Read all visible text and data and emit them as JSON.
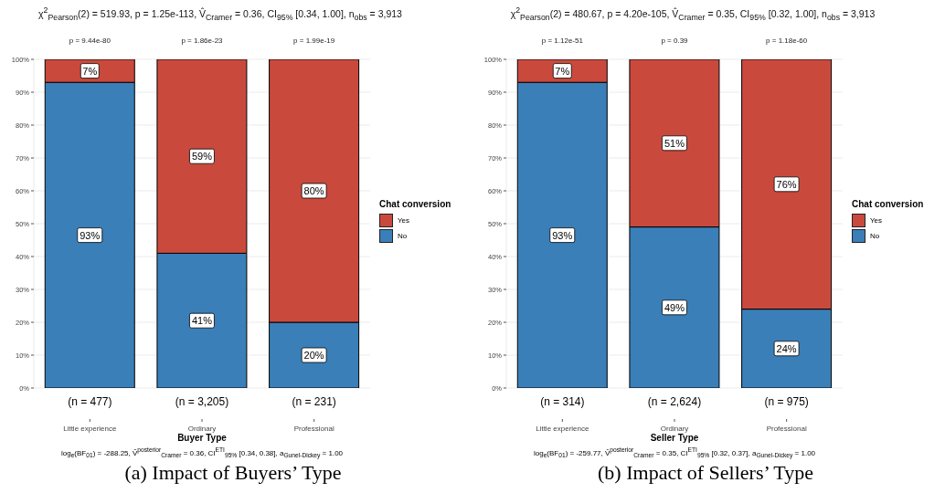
{
  "chart_data": [
    {
      "type": "bar",
      "stacked": true,
      "subtitle": "χ$^{2}$$_{Pearson}$(2) = 519.93, p = 1.25e-113, V̂$_{Cramer}$ = 0.36, CI$_{95%}$ [0.34, 1.00], n$_{obs}$ = 3,913",
      "xlabel": "Buyer Type",
      "legend_title": "Chat conversion",
      "legend": "right",
      "grid": "y",
      "categories": [
        "Little experience",
        "Ordinary",
        "Professional"
      ],
      "series": [
        {
          "name": "No",
          "color": "#3a7fb8",
          "values": [
            93,
            41,
            20
          ],
          "value_labels": [
            "93%",
            "41%",
            "20%"
          ]
        },
        {
          "name": "Yes",
          "color": "#c94a3d",
          "values": [
            7,
            59,
            80
          ],
          "value_labels": [
            "7%",
            "59%",
            "80%"
          ]
        }
      ],
      "ylim": [
        0,
        100
      ],
      "yticks": [
        {
          "value": 0,
          "label": "0%"
        },
        {
          "value": 10,
          "label": "10%"
        },
        {
          "value": 20,
          "label": "20%"
        },
        {
          "value": 30,
          "label": "30%"
        },
        {
          "value": 40,
          "label": "40%"
        },
        {
          "value": 50,
          "label": "50%"
        },
        {
          "value": 60,
          "label": "60%"
        },
        {
          "value": 70,
          "label": "70%"
        },
        {
          "value": 80,
          "label": "80%"
        },
        {
          "value": 90,
          "label": "90%"
        },
        {
          "value": 100,
          "label": "100%"
        }
      ],
      "annotations": [
        "p = 9.44e-80",
        "p = 1.86e-23",
        "p = 1.99e-19",
        "(n = 477)",
        "(n = 3,205)",
        "(n = 231)",
        "log$_{e}$(BF$_{01}$) = -288.25, V̂$^{posterior}$$_{Cramer}$ = 0.36, CI$^{ETI}$$_{95%}$ [0.34, 0.38], a$_{Gunel-Dickey}$ = 1.00",
        "(a) Impact of Buyers’ Type"
      ]
    },
    {
      "type": "bar",
      "stacked": true,
      "subtitle": "χ$^{2}$$_{Pearson}$(2) = 480.67, p = 4.20e-105, V̂$_{Cramer}$ = 0.35, CI$_{95%}$ [0.32, 1.00], n$_{obs}$ = 3,913",
      "xlabel": "Seller Type",
      "legend_title": "Chat conversion",
      "legend": "right",
      "grid": "y",
      "categories": [
        "Little experience",
        "Ordinary",
        "Professional"
      ],
      "series": [
        {
          "name": "No",
          "color": "#3a7fb8",
          "values": [
            93,
            49,
            24
          ],
          "value_labels": [
            "93%",
            "49%",
            "24%"
          ]
        },
        {
          "name": "Yes",
          "color": "#c94a3d",
          "values": [
            7,
            51,
            76
          ],
          "value_labels": [
            "7%",
            "51%",
            "76%"
          ]
        }
      ],
      "ylim": [
        0,
        100
      ],
      "yticks": [
        {
          "value": 0,
          "label": "0%"
        },
        {
          "value": 10,
          "label": "10%"
        },
        {
          "value": 20,
          "label": "20%"
        },
        {
          "value": 30,
          "label": "30%"
        },
        {
          "value": 40,
          "label": "40%"
        },
        {
          "value": 50,
          "label": "50%"
        },
        {
          "value": 60,
          "label": "60%"
        },
        {
          "value": 70,
          "label": "70%"
        },
        {
          "value": 80,
          "label": "80%"
        },
        {
          "value": 90,
          "label": "90%"
        },
        {
          "value": 100,
          "label": "100%"
        }
      ],
      "annotations": [
        "p = 1.12e-51",
        "p = 0.39",
        "p = 1.18e-60",
        "(n = 314)",
        "(n = 2,624)",
        "(n = 975)",
        "log$_{e}$(BF$_{01}$) = -259.77, V̂$^{posterior}$$_{Cramer}$ = 0.35, CI$^{ETI}$$_{95%}$ [0.32, 0.37], a$_{Gunel-Dickey}$ = 1.00",
        "(b) Impact of Sellers’ Type"
      ]
    }
  ]
}
